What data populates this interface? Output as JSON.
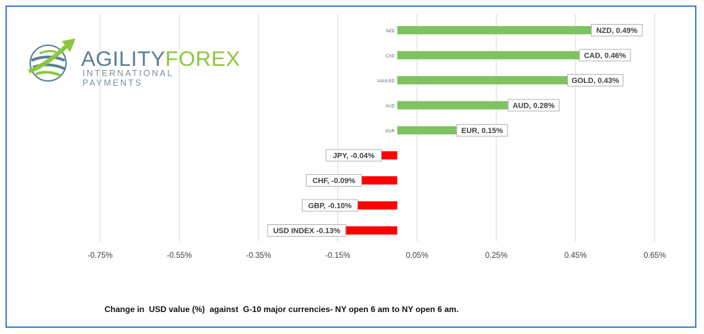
{
  "logo": {
    "word_part1": "AGILITY",
    "word_part2": "FOREX",
    "tagline": "INTERNATIONAL PAYMENTS"
  },
  "caption": "Change in  USD value (%)  against  G-10 major currencies- NY open 6 am to NY open 6 am.",
  "colors": {
    "positive": "#7ec35f",
    "negative": "#ff0000",
    "frame": "#3b7dd8",
    "grid": "#d9d9d9",
    "label_border": "#b0b0b0"
  },
  "chart_data": {
    "type": "bar",
    "orientation": "horizontal",
    "categories": [
      "NZD",
      "CAD",
      "XAUUSD",
      "AUD",
      "EUR",
      "JPY",
      "CHF",
      "GBP",
      "USD INDEX"
    ],
    "values": [
      0.49,
      0.46,
      0.43,
      0.28,
      0.15,
      -0.04,
      -0.09,
      -0.1,
      -0.13
    ],
    "data_labels": [
      "NZD, 0.49%",
      "CAD, 0.46%",
      "GOLD, 0.43%",
      "AUD, 0.28%",
      "EUR, 0.15%",
      "JPY, -0.04%",
      "CHF, -0.09%",
      "GBP, -0.10%",
      "USD INDEX -0.13%"
    ],
    "x_ticks": [
      -0.75,
      -0.55,
      -0.35,
      -0.15,
      0.05,
      0.25,
      0.45,
      0.65
    ],
    "x_tick_labels": [
      "-0.75%",
      "-0.55%",
      "-0.35%",
      "-0.15%",
      "0.05%",
      "0.25%",
      "0.45%",
      "0.65%"
    ],
    "xlim": [
      -0.85,
      0.75
    ],
    "grid": "vertical",
    "legend": "none"
  }
}
